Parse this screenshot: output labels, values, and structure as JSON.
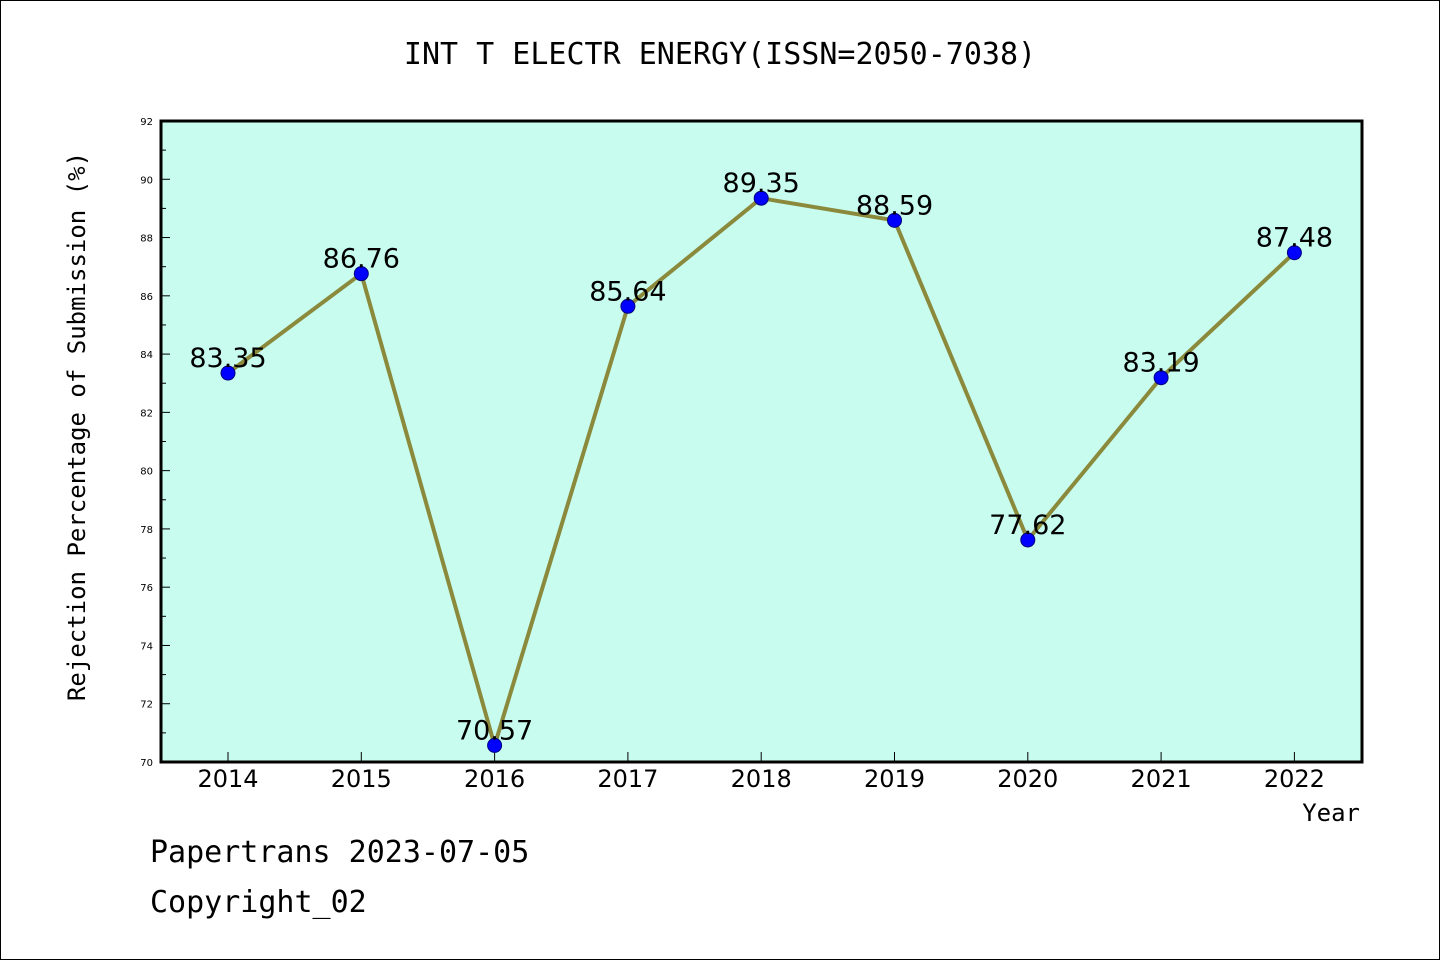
{
  "title": "INT T ELECTR ENERGY(ISSN=2050-7038)",
  "footer": {
    "line1": "Papertrans 2023-07-05",
    "line2": "Copyright_02"
  },
  "colors": {
    "plot_background": "#c7fcee",
    "line": "#8b8a3c",
    "marker": "#0000ff",
    "axis": "#000000"
  },
  "chart_data": {
    "type": "line",
    "title": "INT T ELECTR ENERGY(ISSN=2050-7038)",
    "xlabel": "Year",
    "ylabel": "Rejection Percentage of Submission (%)",
    "categories": [
      "2014",
      "2015",
      "2016",
      "2017",
      "2018",
      "2019",
      "2020",
      "2021",
      "2022"
    ],
    "series": [
      {
        "values": [
          83.35,
          86.76,
          70.57,
          85.64,
          89.35,
          88.59,
          77.62,
          83.19,
          87.48
        ],
        "labels": [
          "83.35",
          "86.76",
          "70.57",
          "85.64",
          "89.35",
          "88.59",
          "77.62",
          "83.19",
          "87.48"
        ]
      }
    ],
    "ylim": [
      70,
      92
    ],
    "yticks": [
      70,
      72,
      74,
      76,
      78,
      80,
      82,
      84,
      86,
      88,
      90,
      92
    ],
    "grid": false,
    "legend": "none",
    "markers": "filled circle"
  }
}
